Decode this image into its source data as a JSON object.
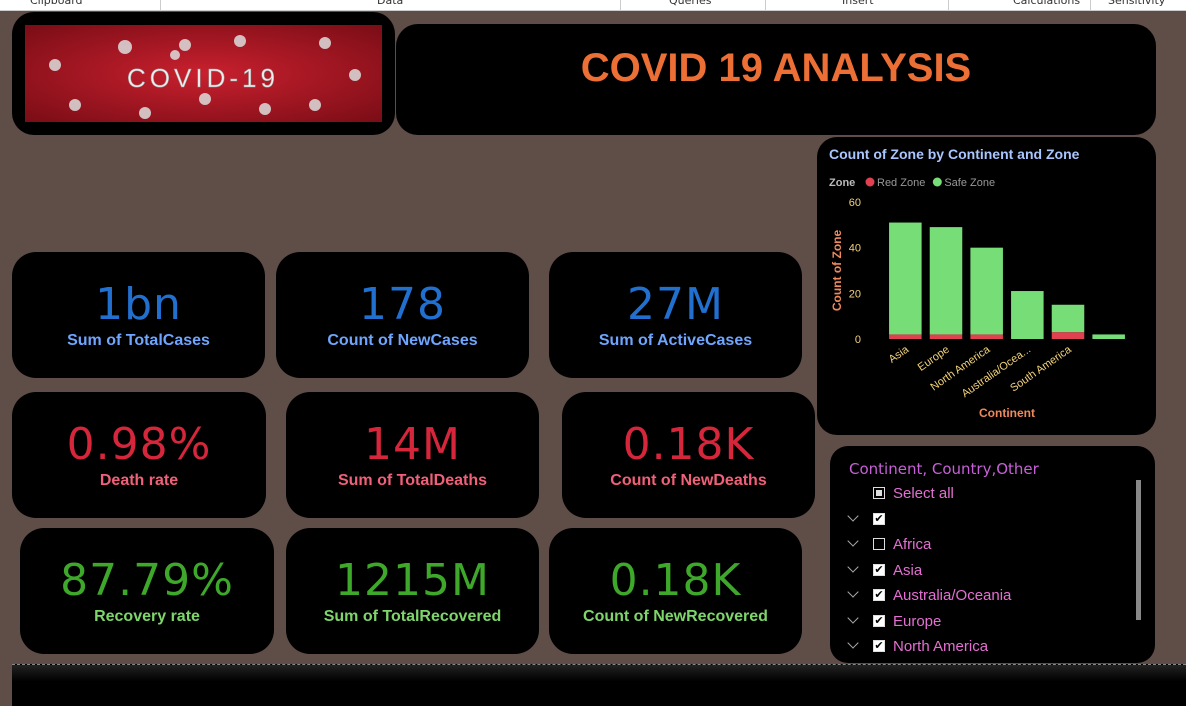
{
  "ribbon": [
    "Clipboard",
    "Data",
    "Queries",
    "Insert",
    "Calculations",
    "Sensitivity"
  ],
  "banner_text": "COVID-19",
  "title": "COVID 19 ANALYSIS",
  "cards": [
    {
      "value": "1bn",
      "label": "Sum of TotalCases"
    },
    {
      "value": "178",
      "label": "Count of NewCases"
    },
    {
      "value": "27M",
      "label": "Sum of ActiveCases"
    },
    {
      "value": "0.98%",
      "label": "Death rate"
    },
    {
      "value": "14M",
      "label": "Sum of TotalDeaths"
    },
    {
      "value": "0.18K",
      "label": "Count of NewDeaths"
    },
    {
      "value": "87.79%",
      "label": "Recovery rate"
    },
    {
      "value": "1215M",
      "label": "Sum of TotalRecovered"
    },
    {
      "value": "0.18K",
      "label": "Count of NewRecovered"
    }
  ],
  "chart_data": {
    "type": "bar",
    "stacked": true,
    "title": "Count of Zone by Continent and Zone",
    "legend_title": "Zone",
    "x_label": "Continent",
    "y_label": "Count of Zone",
    "categories": [
      "Asia",
      "Europe",
      "North America",
      "Australia/Ocea...",
      "South America",
      null
    ],
    "series": [
      {
        "name": "Red Zone",
        "color": "#e0404f",
        "values": [
          2,
          2,
          2,
          0,
          3,
          0
        ]
      },
      {
        "name": "Safe Zone",
        "color": "#77dd77",
        "values": [
          49,
          47,
          38,
          21,
          12,
          2
        ]
      }
    ],
    "ylim": [
      0,
      60
    ],
    "yticks": [
      0,
      20,
      40,
      60
    ],
    "grid": false
  },
  "slicer": {
    "title": "Continent, Country,Other",
    "items": [
      {
        "label": "Select all",
        "state": "partial",
        "expand": false
      },
      {
        "state": "checked",
        "expand": true
      },
      {
        "label": "Africa",
        "state": "unchecked",
        "expand": true
      },
      {
        "label": "Asia",
        "state": "checked",
        "expand": true
      },
      {
        "label": "Australia/Oceania",
        "state": "checked",
        "expand": true
      },
      {
        "label": "Europe",
        "state": "checked",
        "expand": true
      },
      {
        "label": "North America",
        "state": "checked",
        "expand": true
      }
    ]
  }
}
